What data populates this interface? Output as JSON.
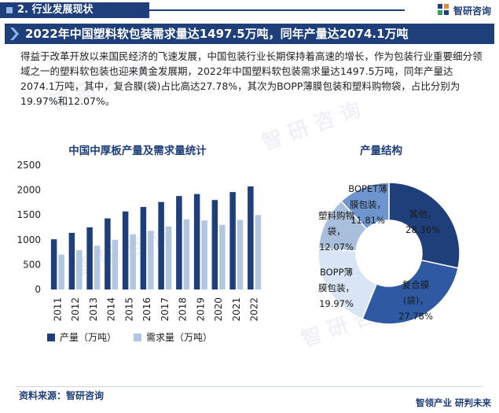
{
  "section_tag": "2. 行业发展现状",
  "brand": {
    "name": "智研咨询"
  },
  "headline": "2022年中国塑料软包装需求量达1497.5万吨，同年产量达2074.1万吨",
  "body_text": "得益于改革开放以来国民经济的飞速发展，中国包装行业长期保持着高速的增长，作为包装行业重要细分领域之一的塑料软包装也迎来黄金发展期，2022年中国塑料软包装需求量达1497.5万吨，同年产量达2074.1万吨，其中，复合膜(袋)占比高达27.78%，其次为BOPP薄膜包装和塑料购物袋，占比分别为19.97%和12.07%。",
  "source": "资料来源：智研咨询",
  "slogan": "智领产业  研判未来",
  "colors": {
    "primary": "#1f3f7a",
    "secondary": "#b3c6df",
    "donut": [
      "#1f3f7a",
      "#2f5aa3",
      "#d9e4f4",
      "#a9bfdc",
      "#6f95cf"
    ]
  },
  "chart_data": [
    {
      "type": "bar",
      "title": "中国中厚板产量及需求量统计",
      "categories": [
        "2011",
        "2012",
        "2013",
        "2014",
        "2015",
        "2016",
        "2017",
        "2018",
        "2019",
        "2020",
        "2021",
        "2022"
      ],
      "series": [
        {
          "name": "产量（万吨）",
          "values": [
            1010,
            1140,
            1250,
            1430,
            1570,
            1660,
            1760,
            1880,
            1920,
            1800,
            1960,
            2074.1
          ]
        },
        {
          "name": "需求量（万吨）",
          "values": [
            700,
            790,
            880,
            1000,
            1110,
            1180,
            1270,
            1410,
            1390,
            1300,
            1400,
            1497.5
          ]
        }
      ],
      "yticks": [
        "0",
        "500",
        "1000",
        "1500",
        "2000",
        "2500"
      ],
      "ylim": [
        0,
        2500
      ],
      "grid": false,
      "legend": "bottom"
    },
    {
      "type": "pie",
      "title": "产量结构",
      "slices": [
        {
          "label_lines": [
            "其他，",
            "28.36%"
          ],
          "value": 28.36
        },
        {
          "label_lines": [
            "复合膜",
            "(袋)，",
            "27.78%"
          ],
          "value": 27.78
        },
        {
          "label_lines": [
            "BOPP薄",
            "膜包装，",
            "19.97%"
          ],
          "value": 19.97
        },
        {
          "label_lines": [
            "塑料购物",
            "袋，",
            "12.07%"
          ],
          "value": 12.07
        },
        {
          "label_lines": [
            "BOPET薄",
            "膜包装，",
            "11.81%"
          ],
          "value": 11.81
        }
      ]
    }
  ],
  "watermark_text": "智研咨询 www.chyxx.com"
}
